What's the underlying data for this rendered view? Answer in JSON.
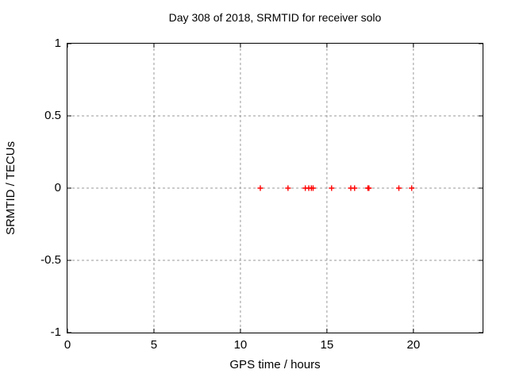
{
  "figure": {
    "background": "#ffffff",
    "text_color": "#000000"
  },
  "chart_data": {
    "type": "scatter",
    "title": "Day 308 of 2018, SRMTID for receiver solo",
    "xlabel": "GPS time / hours",
    "ylabel": "SRMTID / TECUs",
    "xlim": [
      0,
      24
    ],
    "ylim": [
      -1,
      1
    ],
    "xticks": [
      0,
      5,
      10,
      15,
      20
    ],
    "yticks": [
      1,
      0.5,
      0,
      -0.5,
      -1
    ],
    "grid": true,
    "legend_position": "none",
    "series": [
      {
        "name": "SRMTID",
        "marker": "plus",
        "color": "#ff0000",
        "x": [
          11.15,
          12.75,
          13.75,
          13.95,
          14.1,
          14.2,
          15.27,
          16.38,
          16.6,
          17.37,
          17.43,
          19.16,
          19.9
        ],
        "y": [
          0,
          0,
          0,
          0,
          0,
          0,
          0,
          0,
          0,
          0,
          0,
          0,
          0
        ]
      }
    ],
    "colors": {
      "grid": "#9a9a9a",
      "border": "#000000",
      "tick": "#000000",
      "marker": "#ff0000"
    }
  }
}
